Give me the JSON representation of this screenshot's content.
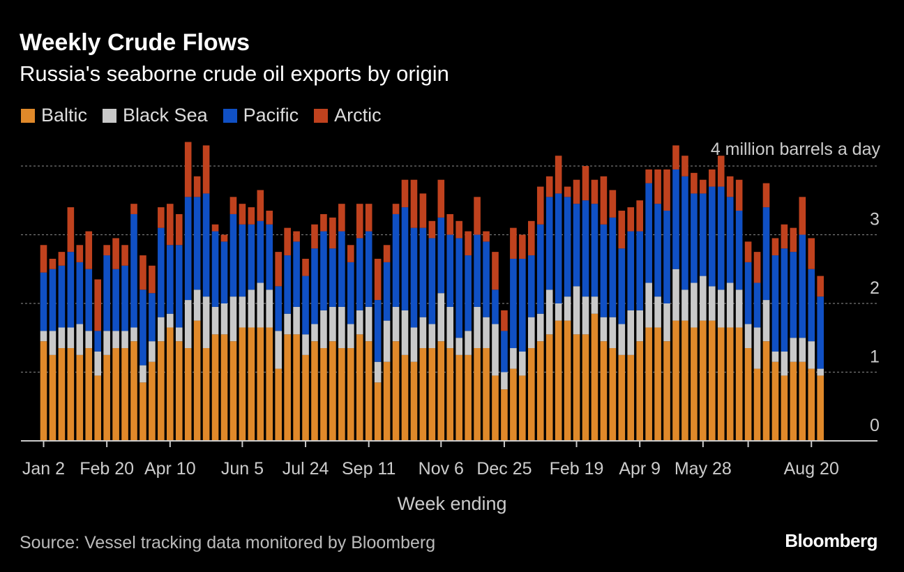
{
  "header": {
    "title": "Weekly Crude Flows",
    "subtitle": "Russia's seaborne crude oil exports by origin"
  },
  "legend": [
    {
      "label": "Baltic",
      "color": "#e0892a"
    },
    {
      "label": "Black Sea",
      "color": "#c9c9c9"
    },
    {
      "label": "Pacific",
      "color": "#1050c4"
    },
    {
      "label": "Arctic",
      "color": "#c0421e"
    }
  ],
  "footer": {
    "source": "Source: Vessel tracking data monitored by Bloomberg",
    "logo": "Bloomberg"
  },
  "chart_data": {
    "type": "bar",
    "stacked": true,
    "title": "Weekly Crude Flows",
    "subtitle": "Russia's seaborne crude oil exports by origin",
    "xlabel": "Week ending",
    "ylabel": "",
    "unit_label": "4 million barrels a day",
    "ylim": [
      0,
      4
    ],
    "yticks": [
      0,
      1,
      2,
      3,
      4
    ],
    "ytick_labels": [
      "0",
      "1",
      "2",
      "3",
      ""
    ],
    "grid": true,
    "legend_position": "top-left",
    "x_tick_labels": [
      {
        "index": 0,
        "label": "Jan 2"
      },
      {
        "index": 7,
        "label": "Feb 20"
      },
      {
        "index": 14,
        "label": "Apr 10"
      },
      {
        "index": 22,
        "label": "Jun 5"
      },
      {
        "index": 29,
        "label": "Jul 24"
      },
      {
        "index": 36,
        "label": "Sep 11"
      },
      {
        "index": 44,
        "label": "Nov 6"
      },
      {
        "index": 51,
        "label": "Dec 25"
      },
      {
        "index": 59,
        "label": "Feb 19"
      },
      {
        "index": 66,
        "label": "Apr 9"
      },
      {
        "index": 73,
        "label": "May 28"
      },
      {
        "index": 85,
        "label": "Aug 20"
      }
    ],
    "extra_ticks": [
      78
    ],
    "series": [
      {
        "name": "Baltic",
        "color": "#e0892a",
        "values": [
          1.45,
          1.25,
          1.35,
          1.35,
          1.25,
          1.35,
          0.95,
          1.25,
          1.35,
          1.35,
          1.45,
          0.85,
          1.15,
          1.45,
          1.65,
          1.45,
          1.35,
          1.75,
          1.35,
          1.55,
          1.55,
          1.45,
          1.65,
          1.65,
          1.65,
          1.65,
          1.05,
          1.55,
          1.55,
          1.25,
          1.45,
          1.35,
          1.45,
          1.35,
          1.35,
          1.55,
          1.45,
          0.85,
          1.15,
          1.45,
          1.25,
          1.15,
          1.35,
          1.35,
          1.45,
          1.35,
          1.25,
          1.25,
          1.35,
          1.35,
          0.95,
          0.75,
          1.05,
          0.95,
          1.35,
          1.45,
          1.55,
          1.75,
          1.75,
          1.55,
          1.55,
          1.85,
          1.45,
          1.35,
          1.25,
          1.25,
          1.45,
          1.65,
          1.65,
          1.45,
          1.75,
          1.75,
          1.65,
          1.75,
          1.75,
          1.65,
          1.65,
          1.65,
          1.35,
          1.05,
          1.45,
          1.15,
          0.95,
          1.15,
          1.15,
          1.05,
          0.95
        ]
      },
      {
        "name": "Black Sea",
        "color": "#c9c9c9",
        "values": [
          0.15,
          0.35,
          0.3,
          0.3,
          0.45,
          0.25,
          0.35,
          0.35,
          0.25,
          0.25,
          0.2,
          0.25,
          0.3,
          0.35,
          0.2,
          0.2,
          0.7,
          0.45,
          0.75,
          0.4,
          0.45,
          0.65,
          0.45,
          0.55,
          0.65,
          0.55,
          0.55,
          0.3,
          0.4,
          0.3,
          0.25,
          0.55,
          0.5,
          0.6,
          0.35,
          0.35,
          0.5,
          0.3,
          0.6,
          0.5,
          0.65,
          0.5,
          0.45,
          0.35,
          0.7,
          0.6,
          0.25,
          0.35,
          0.6,
          0.45,
          0.75,
          0.25,
          0.3,
          0.35,
          0.45,
          0.4,
          0.65,
          0.25,
          0.35,
          0.7,
          0.55,
          0.25,
          0.35,
          0.45,
          0.45,
          0.65,
          0.45,
          0.65,
          0.45,
          0.55,
          0.75,
          0.45,
          0.65,
          0.65,
          0.5,
          0.55,
          0.65,
          0.55,
          0.35,
          0.6,
          0.6,
          0.15,
          0.35,
          0.35,
          0.35,
          0.4,
          0.1
        ]
      },
      {
        "name": "Pacific",
        "color": "#1050c4",
        "values": [
          0.85,
          0.9,
          0.9,
          1.1,
          0.9,
          0.9,
          0.3,
          1.1,
          0.9,
          0.95,
          1.65,
          1.1,
          0.7,
          1.3,
          1.0,
          1.2,
          1.5,
          1.35,
          1.5,
          1.1,
          0.9,
          1.2,
          1.05,
          0.95,
          0.9,
          0.95,
          0.65,
          0.85,
          0.95,
          0.85,
          1.1,
          1.15,
          0.85,
          1.1,
          0.9,
          1.05,
          1.1,
          0.9,
          0.85,
          1.35,
          1.5,
          1.45,
          1.3,
          1.25,
          1.1,
          1.05,
          1.45,
          1.1,
          1.05,
          1.1,
          0.5,
          0.6,
          1.3,
          1.35,
          0.9,
          1.3,
          1.35,
          1.6,
          1.45,
          1.2,
          1.4,
          1.35,
          1.35,
          1.45,
          1.1,
          1.15,
          1.15,
          1.45,
          1.35,
          1.35,
          1.45,
          1.65,
          1.3,
          1.2,
          1.45,
          1.5,
          1.25,
          1.15,
          0.9,
          0.65,
          1.35,
          1.4,
          1.5,
          1.25,
          1.5,
          1.05,
          1.05
        ]
      },
      {
        "name": "Arctic",
        "color": "#c0421e",
        "values": [
          0.4,
          0.15,
          0.2,
          0.65,
          0.25,
          0.55,
          0.75,
          0.15,
          0.45,
          0.3,
          0.15,
          0.5,
          0.4,
          0.3,
          0.6,
          0.45,
          0.8,
          0.3,
          0.7,
          0.1,
          0.1,
          0.25,
          0.3,
          0.25,
          0.45,
          0.2,
          0.5,
          0.4,
          0.15,
          0.25,
          0.35,
          0.25,
          0.45,
          0.4,
          0.25,
          0.5,
          0.4,
          0.6,
          0.25,
          0.15,
          0.4,
          0.7,
          0.5,
          0.25,
          0.55,
          0.3,
          0.25,
          0.35,
          0.55,
          0.15,
          0.55,
          0.3,
          0.45,
          0.35,
          0.5,
          0.55,
          0.3,
          0.55,
          0.15,
          0.35,
          0.5,
          0.35,
          0.7,
          0.4,
          0.55,
          0.35,
          0.45,
          0.2,
          0.5,
          0.6,
          0.35,
          0.3,
          0.3,
          0.2,
          0.25,
          0.45,
          0.3,
          0.45,
          0.3,
          0.45,
          0.35,
          0.25,
          0.35,
          0.35,
          0.55,
          0.45,
          0.3
        ]
      }
    ]
  }
}
